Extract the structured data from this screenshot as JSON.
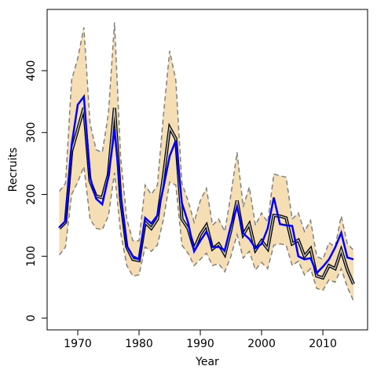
{
  "chart_data": {
    "type": "band_line",
    "x_label": "Year",
    "y_label": "Recruits",
    "x": [
      1967,
      1968,
      1969,
      1970,
      1971,
      1972,
      1973,
      1974,
      1975,
      1976,
      1977,
      1978,
      1979,
      1980,
      1981,
      1982,
      1983,
      1984,
      1985,
      1986,
      1987,
      1988,
      1989,
      1990,
      1991,
      1992,
      1993,
      1994,
      1995,
      1996,
      1997,
      1998,
      1999,
      2000,
      2001,
      2002,
      2003,
      2004,
      2005,
      2006,
      2007,
      2008,
      2009,
      2010,
      2011,
      2012,
      2013,
      2014,
      2015
    ],
    "band": {
      "color": "#f5deb3",
      "edge_color": "#808080",
      "upper": [
        205,
        218,
        385,
        420,
        470,
        315,
        272,
        268,
        330,
        478,
        260,
        160,
        125,
        125,
        215,
        200,
        215,
        330,
        432,
        385,
        218,
        190,
        155,
        190,
        210,
        150,
        160,
        140,
        200,
        268,
        180,
        212,
        150,
        170,
        155,
        233,
        230,
        228,
        160,
        170,
        140,
        158,
        100,
        95,
        122,
        115,
        165,
        120,
        110
      ],
      "lower": [
        102,
        115,
        200,
        220,
        245,
        160,
        145,
        143,
        165,
        235,
        138,
        85,
        68,
        70,
        115,
        108,
        118,
        160,
        220,
        215,
        118,
        105,
        85,
        95,
        105,
        85,
        88,
        75,
        100,
        135,
        97,
        108,
        78,
        90,
        80,
        118,
        120,
        118,
        85,
        92,
        70,
        80,
        48,
        45,
        62,
        58,
        80,
        50,
        28
      ]
    },
    "lines": [
      {
        "color": "#000000",
        "values": [
          145,
          155,
          270,
          305,
          340,
          222,
          197,
          195,
          232,
          340,
          192,
          115,
          95,
          93,
          155,
          145,
          160,
          230,
          308,
          290,
          160,
          145,
          112,
          135,
          150,
          112,
          120,
          103,
          143,
          190,
          135,
          152,
          110,
          125,
          112,
          166,
          165,
          162,
          120,
          126,
          100,
          112,
          68,
          65,
          85,
          80,
          110,
          78,
          55
        ]
      },
      {
        "color": "#0000ff",
        "values": [
          147,
          157,
          280,
          345,
          358,
          228,
          193,
          184,
          228,
          305,
          200,
          117,
          100,
          95,
          162,
          153,
          166,
          212,
          262,
          287,
          186,
          155,
          108,
          125,
          140,
          115,
          115,
          110,
          150,
          180,
          137,
          128,
          113,
          120,
          145,
          195,
          152,
          150,
          149,
          100,
          95,
          97,
          73,
          83,
          95,
          114,
          138,
          98,
          95
        ]
      }
    ],
    "xlim": [
      1965,
      2017.3
    ],
    "ylim": [
      -19,
      499
    ],
    "xticks": [
      1970,
      1980,
      1990,
      2000,
      2010
    ],
    "yticks": [
      0,
      100,
      200,
      300,
      400
    ]
  }
}
